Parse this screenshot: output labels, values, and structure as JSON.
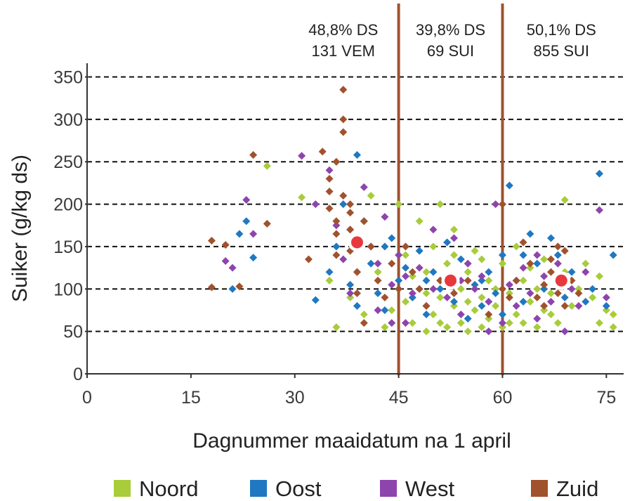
{
  "chart_data": {
    "type": "scatter",
    "xlabel": "Dagnummer maaidatum na 1 april",
    "ylabel": "Suiker (g/kg ds)",
    "xlim": [
      0,
      77
    ],
    "ylim": [
      0,
      360
    ],
    "x_ticks": [
      "0",
      "15",
      "30",
      "45",
      "60",
      "75"
    ],
    "y_ticks": [
      "0",
      "50",
      "100",
      "150",
      "200",
      "250",
      "300",
      "350"
    ],
    "grid": "horizontal dashed",
    "legend_position": "bottom",
    "vertical_lines": [
      45,
      60
    ],
    "vertical_line_color": "#a0522d",
    "annotations": [
      {
        "lines": [
          "48,8% DS",
          "131 VEM"
        ],
        "x": 37
      },
      {
        "lines": [
          "39,8% DS",
          "69 SUI"
        ],
        "x": 52.5
      },
      {
        "lines": [
          "50,1% DS",
          "855 SUI"
        ],
        "x": 68.5
      }
    ],
    "highlight_points": [
      {
        "x": 39,
        "y": 155
      },
      {
        "x": 52.5,
        "y": 110
      },
      {
        "x": 68.5,
        "y": 110
      }
    ],
    "highlight_color": "#e8383d",
    "series": [
      {
        "name": "Noord",
        "color": "#a8cc3a",
        "points": [
          [
            26,
            245
          ],
          [
            31,
            208
          ],
          [
            35,
            110
          ],
          [
            36,
            55
          ],
          [
            38,
            90
          ],
          [
            40,
            70
          ],
          [
            41,
            210
          ],
          [
            42,
            120
          ],
          [
            44,
            75
          ],
          [
            45,
            200
          ],
          [
            46,
            85
          ],
          [
            46,
            140
          ],
          [
            47,
            60
          ],
          [
            48,
            100
          ],
          [
            48,
            180
          ],
          [
            49,
            50
          ],
          [
            49,
            120
          ],
          [
            50,
            70
          ],
          [
            50,
            150
          ],
          [
            51,
            90
          ],
          [
            51,
            200
          ],
          [
            52,
            55
          ],
          [
            52,
            130
          ],
          [
            53,
            80
          ],
          [
            53,
            170
          ],
          [
            54,
            100
          ],
          [
            54,
            60
          ],
          [
            55,
            120
          ],
          [
            55,
            50
          ],
          [
            56,
            75
          ],
          [
            56,
            145
          ],
          [
            57,
            90
          ],
          [
            57,
            55
          ],
          [
            58,
            110
          ],
          [
            58,
            65
          ],
          [
            59,
            80
          ],
          [
            60,
            130
          ],
          [
            60,
            55
          ],
          [
            61,
            95
          ],
          [
            62,
            70
          ],
          [
            62,
            150
          ],
          [
            63,
            110
          ],
          [
            63,
            60
          ],
          [
            64,
            85
          ],
          [
            64,
            125
          ],
          [
            65,
            55
          ],
          [
            65,
            100
          ],
          [
            66,
            75
          ],
          [
            66,
            135
          ],
          [
            67,
            95
          ],
          [
            68,
            60
          ],
          [
            69,
            120
          ],
          [
            69,
            205
          ],
          [
            70,
            80
          ],
          [
            71,
            100
          ],
          [
            72,
            130
          ],
          [
            73,
            90
          ],
          [
            74,
            60
          ],
          [
            74,
            115
          ],
          [
            75,
            75
          ],
          [
            76,
            70
          ],
          [
            76,
            55
          ],
          [
            43,
            55
          ],
          [
            47,
            115
          ],
          [
            53,
            140
          ],
          [
            59,
            100
          ],
          [
            61,
            60
          ],
          [
            67,
            70
          ],
          [
            57,
            135
          ],
          [
            49,
            95
          ],
          [
            55,
            85
          ],
          [
            51,
            60
          ]
        ]
      },
      {
        "name": "Oost",
        "color": "#1f78c1",
        "points": [
          [
            21,
            100
          ],
          [
            22,
            165
          ],
          [
            23,
            180
          ],
          [
            24,
            137
          ],
          [
            33,
            87
          ],
          [
            35,
            120
          ],
          [
            36,
            150
          ],
          [
            37,
            200
          ],
          [
            38,
            105
          ],
          [
            39,
            258
          ],
          [
            40,
            180
          ],
          [
            41,
            130
          ],
          [
            42,
            95
          ],
          [
            43,
            75
          ],
          [
            44,
            160
          ],
          [
            45,
            110
          ],
          [
            46,
            125
          ],
          [
            47,
            90
          ],
          [
            48,
            145
          ],
          [
            49,
            70
          ],
          [
            50,
            120
          ],
          [
            51,
            100
          ],
          [
            52,
            155
          ],
          [
            53,
            85
          ],
          [
            54,
            135
          ],
          [
            55,
            65
          ],
          [
            56,
            105
          ],
          [
            57,
            80
          ],
          [
            58,
            120
          ],
          [
            59,
            95
          ],
          [
            60,
            70
          ],
          [
            61,
            222
          ],
          [
            62,
            110
          ],
          [
            63,
            85
          ],
          [
            64,
            165
          ],
          [
            65,
            130
          ],
          [
            66,
            100
          ],
          [
            67,
            160
          ],
          [
            68,
            140
          ],
          [
            69,
            90
          ],
          [
            70,
            120
          ],
          [
            72,
            85
          ],
          [
            73,
            100
          ],
          [
            74,
            236
          ],
          [
            75,
            80
          ],
          [
            76,
            140
          ],
          [
            60,
            140
          ],
          [
            63,
            140
          ],
          [
            39,
            80
          ],
          [
            43,
            150
          ],
          [
            49,
            110
          ],
          [
            57,
            110
          ]
        ]
      },
      {
        "name": "West",
        "color": "#8e44ad",
        "points": [
          [
            20,
            133
          ],
          [
            21,
            125
          ],
          [
            23,
            205
          ],
          [
            24,
            165
          ],
          [
            31,
            257
          ],
          [
            33,
            200
          ],
          [
            35,
            240
          ],
          [
            36,
            175
          ],
          [
            37,
            135
          ],
          [
            38,
            95
          ],
          [
            39,
            120
          ],
          [
            40,
            220
          ],
          [
            41,
            150
          ],
          [
            42,
            75
          ],
          [
            43,
            185
          ],
          [
            44,
            105
          ],
          [
            45,
            140
          ],
          [
            46,
            60
          ],
          [
            47,
            95
          ],
          [
            48,
            125
          ],
          [
            49,
            80
          ],
          [
            50,
            170
          ],
          [
            51,
            110
          ],
          [
            52,
            90
          ],
          [
            53,
            160
          ],
          [
            54,
            70
          ],
          [
            55,
            130
          ],
          [
            56,
            100
          ],
          [
            57,
            115
          ],
          [
            58,
            85
          ],
          [
            59,
            200
          ],
          [
            60,
            60
          ],
          [
            61,
            105
          ],
          [
            62,
            80
          ],
          [
            63,
            125
          ],
          [
            64,
            95
          ],
          [
            65,
            65
          ],
          [
            66,
            115
          ],
          [
            67,
            85
          ],
          [
            68,
            130
          ],
          [
            69,
            50
          ],
          [
            70,
            100
          ],
          [
            71,
            80
          ],
          [
            72,
            120
          ],
          [
            74,
            193
          ],
          [
            75,
            90
          ],
          [
            38,
            170
          ],
          [
            42,
            130
          ],
          [
            46,
            115
          ],
          [
            50,
            100
          ],
          [
            54,
            110
          ],
          [
            58,
            50
          ],
          [
            65,
            140
          ],
          [
            44,
            60
          ]
        ]
      },
      {
        "name": "Zuid",
        "color": "#a0522d",
        "points": [
          [
            18,
            157
          ],
          [
            18,
            102
          ],
          [
            20,
            152
          ],
          [
            22,
            103
          ],
          [
            24,
            258
          ],
          [
            26,
            177
          ],
          [
            32,
            135
          ],
          [
            34,
            262
          ],
          [
            35,
            230
          ],
          [
            35,
            195
          ],
          [
            36,
            250
          ],
          [
            36,
            180
          ],
          [
            36,
            140
          ],
          [
            37,
            335
          ],
          [
            37,
            300
          ],
          [
            37,
            285
          ],
          [
            37,
            210
          ],
          [
            38,
            170
          ],
          [
            38,
            200
          ],
          [
            38,
            190
          ],
          [
            39,
            160
          ],
          [
            39,
            120
          ],
          [
            40,
            180
          ],
          [
            40,
            60
          ],
          [
            41,
            150
          ],
          [
            42,
            110
          ],
          [
            43,
            90
          ],
          [
            44,
            130
          ],
          [
            45,
            100
          ],
          [
            46,
            150
          ],
          [
            47,
            120
          ],
          [
            48,
            100
          ],
          [
            49,
            80
          ],
          [
            51,
            110
          ],
          [
            53,
            95
          ],
          [
            55,
            110
          ],
          [
            58,
            70
          ],
          [
            60,
            100
          ],
          [
            61,
            90
          ],
          [
            62,
            110
          ],
          [
            63,
            155
          ],
          [
            64,
            130
          ],
          [
            65,
            90
          ],
          [
            66,
            105
          ],
          [
            67,
            120
          ],
          [
            68,
            95
          ],
          [
            68,
            150
          ],
          [
            69,
            80
          ],
          [
            69,
            145
          ],
          [
            70,
            110
          ],
          [
            71,
            95
          ],
          [
            60,
            200
          ],
          [
            36,
            165
          ],
          [
            38,
            145
          ],
          [
            66,
            80
          ],
          [
            67,
            135
          ],
          [
            35,
            215
          ],
          [
            39,
            95
          ]
        ]
      }
    ]
  },
  "legend": [
    {
      "label": "Noord",
      "color": "#a8cc3a"
    },
    {
      "label": "Oost",
      "color": "#1f78c1"
    },
    {
      "label": "West",
      "color": "#8e44ad"
    },
    {
      "label": "Zuid",
      "color": "#a0522d"
    }
  ]
}
